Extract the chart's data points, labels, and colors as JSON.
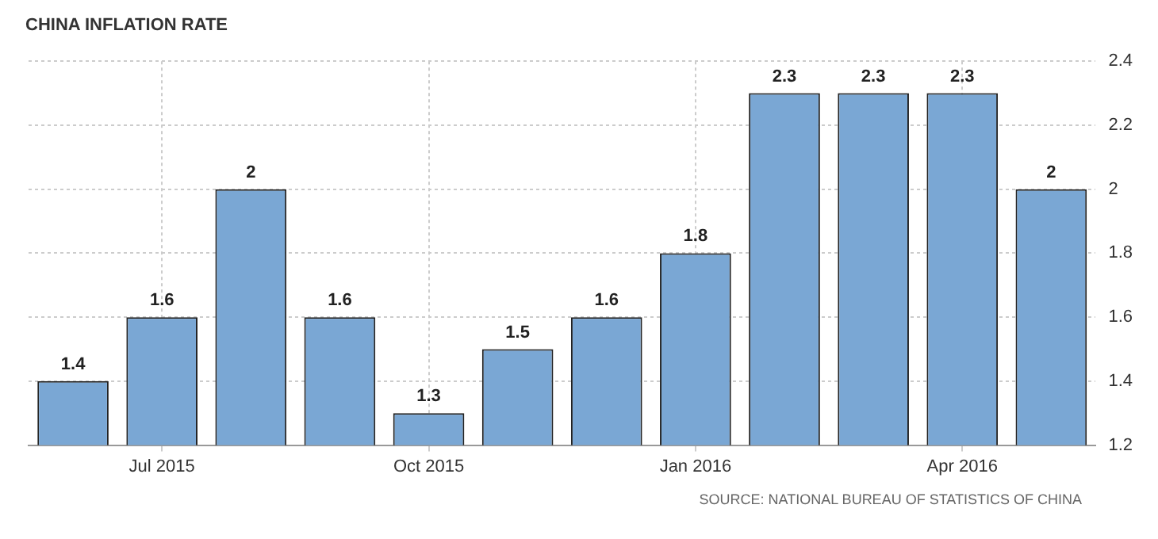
{
  "chart_data": {
    "type": "bar",
    "title": "CHINA INFLATION RATE",
    "categories": [
      null,
      "Jul 2015",
      null,
      null,
      "Oct 2015",
      null,
      null,
      "Jan 2016",
      null,
      null,
      "Apr 2016",
      null
    ],
    "values": [
      1.4,
      1.6,
      2,
      1.6,
      1.3,
      1.5,
      1.6,
      1.8,
      2.3,
      2.3,
      2.3,
      2
    ],
    "color": "#7aa7d4",
    "ylim": [
      1.2,
      2.4
    ],
    "yticks": [
      1.2,
      1.4,
      1.6,
      1.8,
      2,
      2.2,
      2.4
    ],
    "grid": true,
    "data_labels": true,
    "annotations": [
      "SOURCE: NATIONAL BUREAU OF STATISTICS OF CHINA"
    ]
  }
}
